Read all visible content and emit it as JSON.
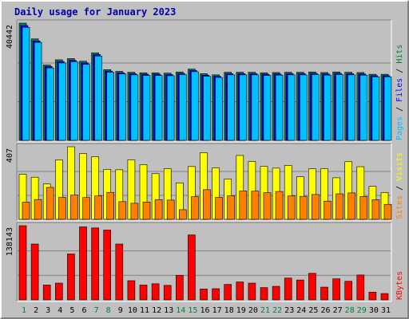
{
  "chart_data": {
    "type": "bar",
    "title": "Daily usage for January 2023",
    "categories": [
      "1",
      "2",
      "3",
      "4",
      "5",
      "6",
      "7",
      "8",
      "9",
      "10",
      "11",
      "12",
      "13",
      "14",
      "15",
      "16",
      "17",
      "18",
      "19",
      "20",
      "21",
      "22",
      "23",
      "24",
      "25",
      "26",
      "27",
      "28",
      "29",
      "30",
      "31"
    ],
    "weekend_days": [
      1,
      7,
      8,
      14,
      15,
      21,
      22,
      28,
      29
    ],
    "panels": [
      {
        "id": "hits",
        "max_label": "40442",
        "ylim": [
          0,
          40442
        ],
        "axis_label": [
          "Pages",
          "Files",
          "Hits"
        ],
        "axis_label_colors": [
          "#00c0ff",
          "#0000ff",
          "#008040"
        ],
        "series": [
          {
            "name": "Hits",
            "color": "#00805c",
            "values": [
              40442,
              35000,
              26000,
              27800,
              28200,
              27300,
              30200,
              24400,
              23800,
              23500,
              23300,
              23300,
              23200,
              23600,
              24600,
              23000,
              22600,
              23500,
              23500,
              23500,
              23300,
              23400,
              23500,
              23500,
              23600,
              23400,
              23600,
              23500,
              23400,
              22800,
              22800
            ]
          },
          {
            "name": "Files",
            "color": "#0000ff",
            "values": [
              39600,
              34300,
              25500,
              27200,
              27600,
              26700,
              29600,
              23900,
              23300,
              23000,
              22800,
              22800,
              22700,
              23100,
              24100,
              22500,
              22100,
              23000,
              23000,
              23000,
              22800,
              22900,
              23000,
              23000,
              23100,
              22900,
              23100,
              23000,
              22900,
              22300,
              22300
            ]
          },
          {
            "name": "Pages",
            "color": "#00c0ff",
            "values": [
              39000,
              33800,
              25000,
              26700,
              27100,
              26200,
              29100,
              23500,
              22900,
              22600,
              22400,
              22400,
              22300,
              22700,
              23700,
              22100,
              21700,
              22600,
              22600,
              22600,
              22400,
              22500,
              22600,
              22600,
              22700,
              22500,
              22700,
              22600,
              22500,
              21900,
              21900
            ]
          }
        ]
      },
      {
        "id": "visits",
        "max_label": "407",
        "ylim": [
          0,
          407
        ],
        "axis_label": [
          "Sites",
          "Visits"
        ],
        "axis_label_colors": [
          "#ff8000",
          "#ffff00"
        ],
        "series": [
          {
            "name": "Visits",
            "color": "#ffff00",
            "values": [
              252,
              236,
              198,
              333,
              407,
              368,
              351,
              280,
              278,
              333,
              306,
              256,
              284,
              204,
              296,
              374,
              288,
              226,
              358,
              324,
              297,
              287,
              302,
              239,
              283,
              284,
              233,
              323,
              295,
              185,
              150
            ]
          },
          {
            "name": "Sites",
            "color": "#ff8000",
            "values": [
              96,
              111,
              179,
              123,
              136,
              122,
              131,
              151,
              99,
              90,
              97,
              110,
              108,
              54,
              127,
              166,
              123,
              132,
              159,
              158,
              149,
              156,
              131,
              129,
              139,
              102,
              143,
              148,
              128,
              110,
              84
            ]
          }
        ]
      },
      {
        "id": "kbytes",
        "max_label": "138143",
        "ylim": [
          0,
          138143
        ],
        "axis_label": [
          "KBytes"
        ],
        "axis_label_colors": [
          "#ff0000"
        ],
        "series": [
          {
            "name": "KBytes",
            "color": "#ff0000",
            "values": [
              138143,
              104000,
              27600,
              31200,
              85500,
              136000,
              134000,
              130000,
              104000,
              35700,
              27600,
              30000,
              27000,
              45700,
              121000,
              20200,
              20800,
              28800,
              33400,
              31200,
              22800,
              25200,
              40600,
              37000,
              49400,
              23700,
              39200,
              34600,
              46300,
              14300,
              11800
            ]
          }
        ]
      }
    ]
  }
}
